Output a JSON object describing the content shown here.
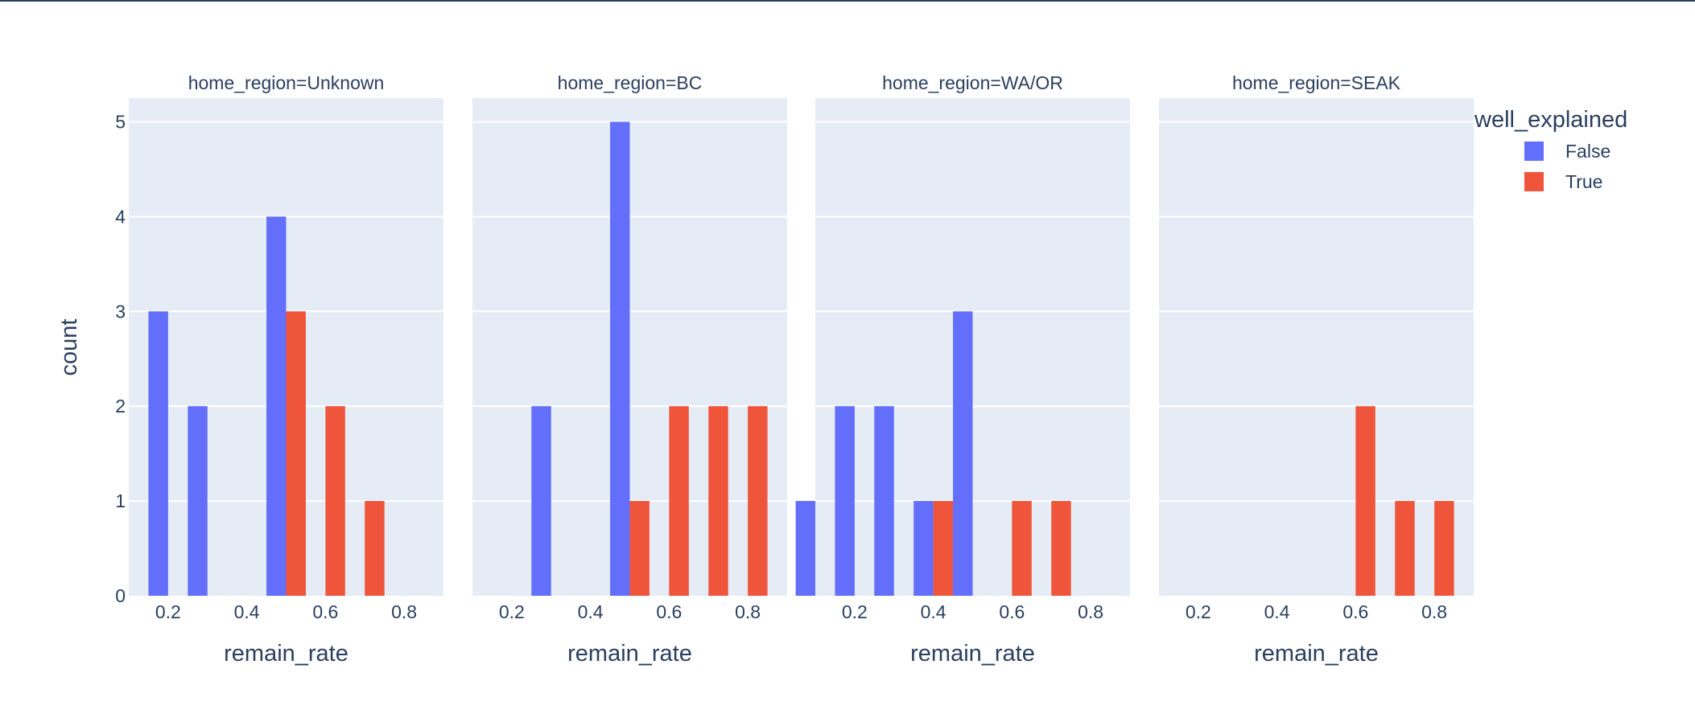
{
  "chart_data": {
    "type": "bar",
    "legend_title": "well_explained",
    "legend_placement": "top-right",
    "xlabel": "remain_rate",
    "ylabel": "count",
    "ylim": [
      0,
      5.25
    ],
    "xlim": [
      0.1,
      0.9
    ],
    "x_ticks": [
      "0.2",
      "0.4",
      "0.6",
      "0.8"
    ],
    "y_ticks": [
      "0",
      "1",
      "2",
      "3",
      "4",
      "5"
    ],
    "grid": true,
    "background": "#e5ecf6",
    "series_colors": {
      "False": "#636efa",
      "True": "#ef553b"
    },
    "series": [
      {
        "name": "False"
      },
      {
        "name": "True"
      }
    ],
    "facets": [
      {
        "title": "home_region=Unknown",
        "bars": [
          {
            "x": 0.2,
            "series": "False",
            "value": 3
          },
          {
            "x": 0.3,
            "series": "False",
            "value": 2
          },
          {
            "x": 0.5,
            "series": "False",
            "value": 4
          },
          {
            "x": 0.5,
            "series": "True",
            "value": 3
          },
          {
            "x": 0.6,
            "series": "True",
            "value": 2
          },
          {
            "x": 0.7,
            "series": "True",
            "value": 1
          }
        ]
      },
      {
        "title": "home_region=BC",
        "bars": [
          {
            "x": 0.3,
            "series": "False",
            "value": 2
          },
          {
            "x": 0.5,
            "series": "False",
            "value": 5
          },
          {
            "x": 0.5,
            "series": "True",
            "value": 1
          },
          {
            "x": 0.6,
            "series": "True",
            "value": 2
          },
          {
            "x": 0.7,
            "series": "True",
            "value": 2
          },
          {
            "x": 0.8,
            "series": "True",
            "value": 2
          }
        ]
      },
      {
        "title": "home_region=WA/OR",
        "bars": [
          {
            "x": 0.1,
            "series": "False",
            "value": 1
          },
          {
            "x": 0.2,
            "series": "False",
            "value": 2
          },
          {
            "x": 0.3,
            "series": "False",
            "value": 2
          },
          {
            "x": 0.4,
            "series": "False",
            "value": 1
          },
          {
            "x": 0.4,
            "series": "True",
            "value": 1
          },
          {
            "x": 0.5,
            "series": "False",
            "value": 3
          },
          {
            "x": 0.6,
            "series": "True",
            "value": 1
          },
          {
            "x": 0.7,
            "series": "True",
            "value": 1
          }
        ]
      },
      {
        "title": "home_region=SEAK",
        "bars": [
          {
            "x": 0.6,
            "series": "True",
            "value": 2
          },
          {
            "x": 0.7,
            "series": "True",
            "value": 1
          },
          {
            "x": 0.8,
            "series": "True",
            "value": 1
          }
        ]
      }
    ]
  }
}
